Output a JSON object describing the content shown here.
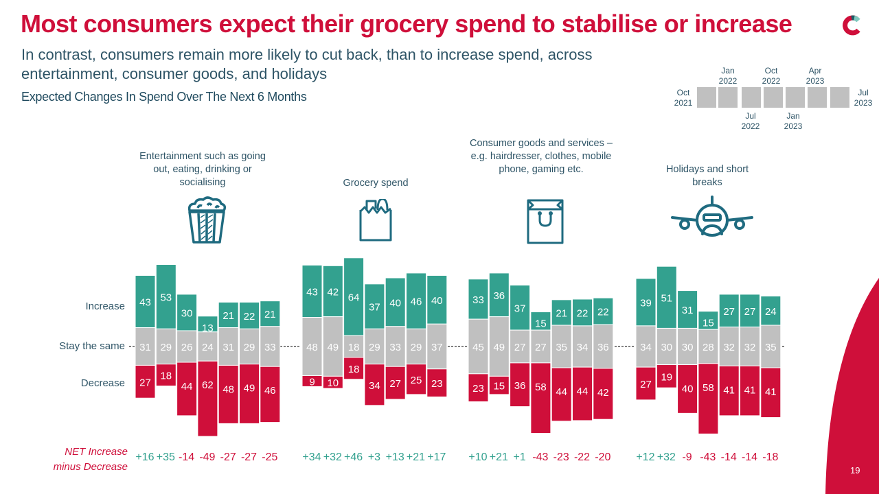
{
  "header": {
    "title": "Most consumers expect their grocery spend to stabilise or increase",
    "subtitle": "In contrast, consumers remain more likely to cut back, than to increase spend, across entertainment, consumer goods, and holidays",
    "chart_title": "Expected Changes In Spend Over The Next 6 Months",
    "logo_icon": "brand-c-logo-icon"
  },
  "timeline": {
    "waves": [
      "Oct 2021",
      "Jan 2022",
      "Jul 2022",
      "Oct 2022",
      "Jan 2023",
      "Apr 2023",
      "Jul 2023"
    ],
    "labels": [
      {
        "line1": "Oct",
        "line2": "2021"
      },
      {
        "line1": "Jan",
        "line2": "2022"
      },
      {
        "line1": "Jul",
        "line2": "2022"
      },
      {
        "line1": "Oct",
        "line2": "2022"
      },
      {
        "line1": "Jan",
        "line2": "2023"
      },
      {
        "line1": "Apr",
        "line2": "2023"
      },
      {
        "line1": "Jul",
        "line2": "2023"
      }
    ]
  },
  "row_labels": {
    "increase": "Increase",
    "same": "Stay the same",
    "decrease": "Decrease"
  },
  "net": {
    "label_line1": "NET Increase",
    "label_line2": "minus Decrease"
  },
  "colors": {
    "increase": "#33a18f",
    "same": "#c0c0c0",
    "decrease": "#cf0f3a",
    "brand_red": "#cf0f3a",
    "text_blue": "#2e5466"
  },
  "page_number": "19",
  "chart_data": {
    "type": "bar",
    "subtype": "diverging-stacked",
    "title": "Expected Changes In Spend Over The Next 6 Months",
    "x": [
      "Oct 2021",
      "Jan 2022",
      "Jul 2022",
      "Oct 2022",
      "Jan 2023",
      "Apr 2023",
      "Jul 2023"
    ],
    "series_names": [
      "Increase",
      "Stay the same",
      "Decrease"
    ],
    "groups": [
      {
        "name": "Entertainment such as going out, eating, drinking or socialising",
        "icon": "popcorn-icon",
        "increase": [
          43,
          53,
          30,
          13,
          21,
          22,
          21
        ],
        "same": [
          31,
          29,
          26,
          24,
          31,
          29,
          33
        ],
        "decrease": [
          27,
          18,
          44,
          62,
          48,
          49,
          46
        ],
        "net": [
          "+16",
          "+35",
          "-14",
          "-49",
          "-27",
          "-27",
          "-25"
        ]
      },
      {
        "name": "Grocery spend",
        "icon": "grocery-bag-icon",
        "increase": [
          43,
          42,
          64,
          37,
          40,
          46,
          40
        ],
        "same": [
          48,
          49,
          18,
          29,
          33,
          29,
          37
        ],
        "decrease": [
          9,
          10,
          18,
          34,
          27,
          25,
          23
        ],
        "net": [
          "+34",
          "+32",
          "+46",
          "+3",
          "+13",
          "+21",
          "+17"
        ]
      },
      {
        "name": "Consumer goods and services – e.g. hairdresser, clothes, mobile phone, gaming etc.",
        "icon": "shopping-bag-icon",
        "increase": [
          33,
          36,
          37,
          15,
          21,
          22,
          22
        ],
        "same": [
          45,
          49,
          27,
          27,
          35,
          34,
          36
        ],
        "decrease": [
          23,
          15,
          36,
          58,
          44,
          44,
          42
        ],
        "net": [
          "+10",
          "+21",
          "+1",
          "-43",
          "-23",
          "-22",
          "-20"
        ]
      },
      {
        "name": "Holidays and short breaks",
        "icon": "airplane-icon",
        "increase": [
          39,
          51,
          31,
          15,
          27,
          27,
          24
        ],
        "same": [
          34,
          30,
          30,
          28,
          32,
          32,
          35
        ],
        "decrease": [
          27,
          19,
          40,
          58,
          41,
          41,
          41
        ],
        "net": [
          "+12",
          "+32",
          "-9",
          "-43",
          "-14",
          "-14",
          "-18"
        ]
      }
    ],
    "legend": "row labels on left",
    "grid": false
  }
}
